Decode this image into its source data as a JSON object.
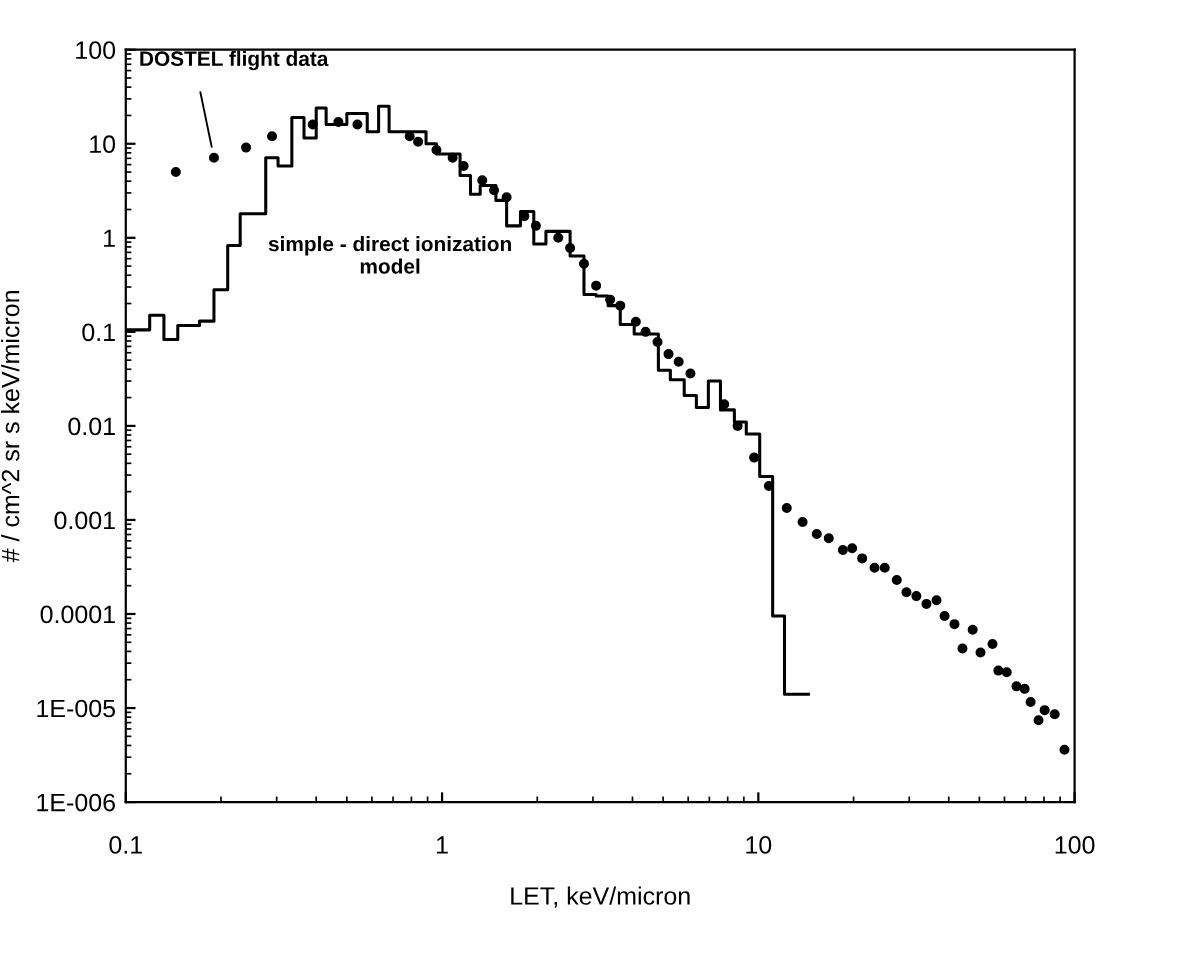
{
  "chart_data": {
    "type": "scatter",
    "xlabel": "LET, keV/micron",
    "ylabel": "# / cm^2 sr s keV/micron",
    "log": "xy",
    "grid": false,
    "legend": false,
    "marker": "circle",
    "xlim": [
      0.1,
      100
    ],
    "xticks": [
      0.1,
      1,
      10,
      100
    ],
    "ylim": [
      1e-06,
      100
    ],
    "yticks": [
      {
        "value": 1e-06,
        "label": "1E-006"
      },
      {
        "value": 1e-05,
        "label": "1E-005"
      },
      {
        "value": 0.0001,
        "label": "0.0001"
      },
      {
        "value": 0.001,
        "label": "0.001"
      },
      {
        "value": 0.01,
        "label": "0.01"
      },
      {
        "value": 0.1,
        "label": "0.1"
      },
      {
        "value": 1,
        "label": "1"
      },
      {
        "value": 10,
        "label": "10"
      },
      {
        "value": 100,
        "label": "100"
      }
    ],
    "series": [
      {
        "name": "DOSTEL flight data",
        "color": "#000000",
        "x": [
          0.144,
          0.19,
          0.24,
          0.29,
          0.39,
          0.47,
          0.54,
          0.79,
          0.84,
          0.96,
          1.08,
          1.17,
          1.34,
          1.46,
          1.6,
          1.82,
          1.98,
          2.33,
          2.54,
          2.81,
          3.07,
          3.4,
          3.66,
          4.1,
          4.4,
          4.8,
          5.2,
          5.6,
          6.1,
          7.8,
          8.6,
          9.7,
          10.8,
          12.3,
          13.8,
          15.3,
          16.7,
          18.5,
          19.8,
          21.3,
          23.3,
          25.1,
          27.4,
          29.4,
          31.6,
          34,
          36.6,
          38.8,
          41.7,
          44.2,
          47.6,
          50.4,
          55,
          57.4,
          61,
          65.5,
          69.5,
          72.6,
          76.9,
          80.4,
          86.5,
          92.9
        ],
        "values": [
          5.0,
          7.1,
          9.1,
          12,
          16,
          17,
          16,
          12,
          10.5,
          8.6,
          7.1,
          5.8,
          4.1,
          3.2,
          2.7,
          1.7,
          1.34,
          1.0,
          0.78,
          0.53,
          0.31,
          0.22,
          0.19,
          0.128,
          0.1,
          0.078,
          0.058,
          0.048,
          0.036,
          0.017,
          0.01,
          0.0046,
          0.0023,
          0.00134,
          0.00095,
          0.00071,
          0.00064,
          0.00048,
          0.0005,
          0.00039,
          0.00031,
          0.00031,
          0.00023,
          0.00017,
          0.000155,
          0.000128,
          0.00014,
          9.5e-05,
          7.8e-05,
          4.3e-05,
          6.8e-05,
          3.9e-05,
          4.8e-05,
          2.5e-05,
          2.4e-05,
          1.7e-05,
          1.6e-05,
          1.16e-05,
          7.4e-06,
          9.5e-06,
          8.6e-06,
          3.6e-06
        ]
      },
      {
        "name": "simple - direct ionization\nmodel",
        "type": "step",
        "color": "#000000",
        "marker": "none",
        "line_style": "solid",
        "x": [
          0.1,
          0.119,
          0.132,
          0.146,
          0.171,
          0.19,
          0.21,
          0.23,
          0.277,
          0.303,
          0.335,
          0.366,
          0.4,
          0.43,
          0.5,
          0.58,
          0.63,
          0.68,
          0.89,
          0.96,
          1.14,
          1.23,
          1.32,
          1.48,
          1.6,
          1.77,
          1.95,
          2.13,
          2.54,
          2.81,
          3.07,
          3.35,
          3.66,
          4.05,
          4.83,
          5.27,
          5.83,
          6.37,
          6.95,
          7.59,
          8.4,
          9.16,
          10.1,
          11.1,
          12.1,
          14.4
        ],
        "values": [
          0.105,
          0.15,
          0.083,
          0.117,
          0.13,
          0.28,
          0.83,
          1.8,
          7.1,
          5.8,
          19,
          11.5,
          24,
          16,
          21,
          13.4,
          25,
          13.4,
          10,
          7.8,
          4.6,
          2.9,
          3.6,
          2.5,
          1.34,
          1.9,
          0.86,
          1.17,
          0.64,
          0.25,
          0.24,
          0.19,
          0.12,
          0.095,
          0.039,
          0.031,
          0.021,
          0.0157,
          0.03,
          0.0148,
          0.011,
          0.0082,
          0.0029,
          9.5e-05,
          1.4e-05,
          1.4e-05
        ]
      }
    ]
  }
}
